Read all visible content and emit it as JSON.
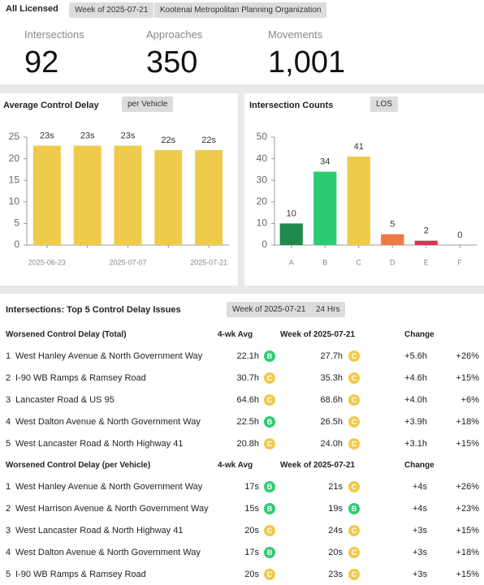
{
  "header": {
    "title": "All Licensed",
    "chips": [
      "Week of 2025-07-21",
      "Kootenai Metropolitan Planning Organization"
    ]
  },
  "kpis": [
    {
      "label": "Intersections",
      "value": "92"
    },
    {
      "label": "Approaches",
      "value": "350"
    },
    {
      "label": "Movements",
      "value": "1,001"
    }
  ],
  "chart_data": [
    {
      "type": "bar",
      "title": "Average Control Delay",
      "selector": "per Vehicle",
      "categories": [
        "2025-06-23",
        null,
        "2025-07-07",
        null,
        "2025-07-21"
      ],
      "values": [
        23,
        23,
        23,
        22,
        22
      ],
      "value_labels": [
        "23s",
        "23s",
        "23s",
        "22s",
        "22s"
      ],
      "color": "#eecb4a",
      "ylim": [
        0,
        25
      ],
      "yticks": [
        0,
        5,
        10,
        15,
        20,
        25
      ],
      "grid": false
    },
    {
      "type": "bar",
      "title": "Intersection Counts",
      "selector": "LOS",
      "categories": [
        "A",
        "B",
        "C",
        "D",
        "E",
        "F"
      ],
      "values": [
        10,
        34,
        41,
        5,
        2,
        0
      ],
      "colors": [
        "#1e8a4b",
        "#2ecc71",
        "#eecb4a",
        "#ee7b45",
        "#d9334f",
        "#cccccc"
      ],
      "ylim": [
        0,
        50
      ],
      "yticks": [
        0,
        10,
        20,
        30,
        40,
        50
      ],
      "grid": false
    }
  ],
  "table_section": {
    "title": "Intersections: Top 5 Control Delay Issues",
    "chips": [
      "Week of 2025-07-21",
      "24 Hrs"
    ]
  },
  "tables": [
    {
      "columns": [
        "Worsened Control Delay (Total)",
        "4-wk Avg",
        "Week of 2025-07-21",
        "Change"
      ],
      "rows": [
        [
          "1",
          "West Hanley Avenue & North Government Way",
          "22.1h",
          "B",
          "27.7h",
          "C",
          "+5.6h",
          "+26%"
        ],
        [
          "2",
          "I-90 WB Ramps & Ramsey Road",
          "30.7h",
          "C",
          "35.3h",
          "C",
          "+4.6h",
          "+15%"
        ],
        [
          "3",
          "Lancaster Road & US 95",
          "64.6h",
          "C",
          "68.6h",
          "C",
          "+4.0h",
          "+6%"
        ],
        [
          "4",
          "West Dalton Avenue & North Government Way",
          "22.5h",
          "B",
          "26.5h",
          "C",
          "+3.9h",
          "+18%"
        ],
        [
          "5",
          "West Lancaster Road & North Highway 41",
          "20.8h",
          "C",
          "24.0h",
          "C",
          "+3.1h",
          "+15%"
        ]
      ]
    },
    {
      "columns": [
        "Worsened Control Delay (per Vehicle)",
        "4-wk Avg",
        "Week of 2025-07-21",
        "Change"
      ],
      "rows": [
        [
          "1",
          "West Hanley Avenue & North Government Way",
          "17s",
          "B",
          "21s",
          "C",
          "+4s",
          "+26%"
        ],
        [
          "2",
          "West Harrison Avenue & North Government Way",
          "15s",
          "B",
          "19s",
          "B",
          "+4s",
          "+23%"
        ],
        [
          "3",
          "West Lancaster Road & North Highway 41",
          "20s",
          "C",
          "24s",
          "C",
          "+3s",
          "+15%"
        ],
        [
          "4",
          "West Dalton Avenue & North Government Way",
          "17s",
          "B",
          "20s",
          "C",
          "+3s",
          "+18%"
        ],
        [
          "5",
          "I-90 WB Ramps & Ramsey Road",
          "20s",
          "C",
          "23s",
          "C",
          "+3s",
          "+15%"
        ]
      ]
    }
  ]
}
